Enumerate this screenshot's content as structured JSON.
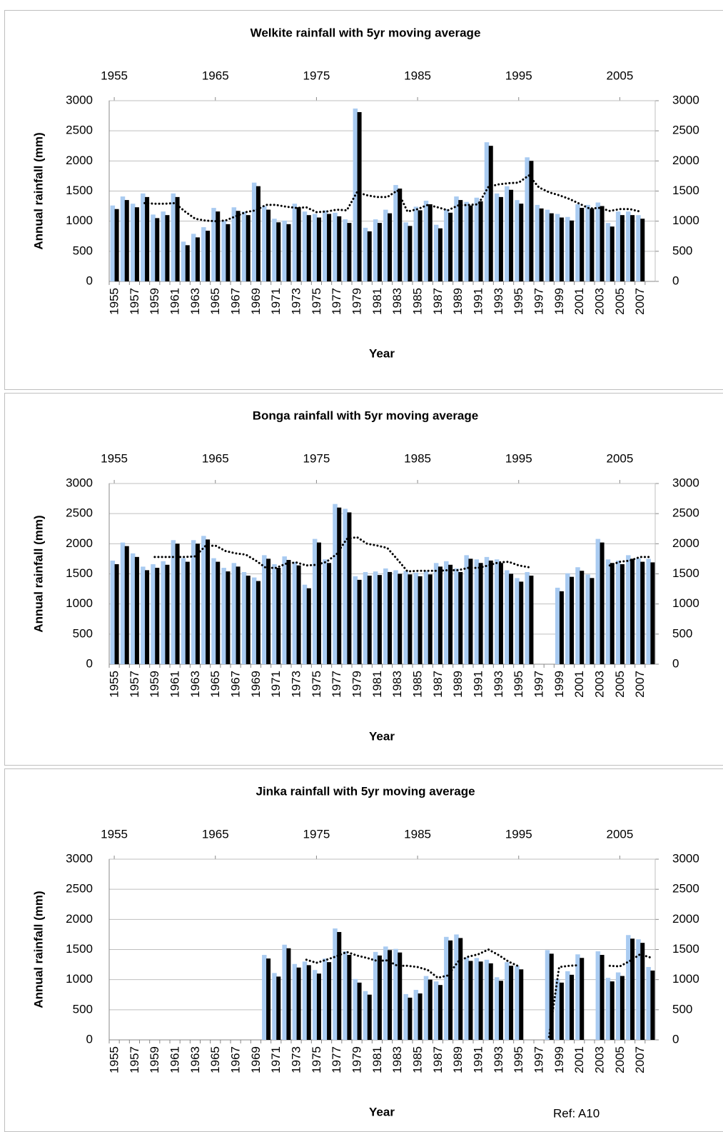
{
  "chart_data": [
    {
      "type": "bar",
      "title": "Welkite rainfall with 5yr moving average",
      "xlabel": "Year",
      "ylabel": "Annual rainfall (mm)",
      "categories": [
        "1955",
        null,
        "1957",
        null,
        "1959",
        null,
        "1961",
        null,
        "1963",
        null,
        "1965",
        null,
        "1967",
        null,
        "1969",
        null,
        "1971",
        null,
        "1973",
        null,
        "1975",
        null,
        "1977",
        null,
        "1979",
        null,
        "1981",
        null,
        "1983",
        null,
        "1985",
        null,
        "1987",
        null,
        "1989",
        null,
        "1991",
        null,
        "1993",
        null,
        "1995",
        null,
        "1997",
        null,
        "1999",
        null,
        "2001",
        null,
        "2003",
        null,
        "2005",
        null,
        "2007",
        null
      ],
      "values": [
        1260,
        1410,
        1290,
        1460,
        1110,
        1160,
        1460,
        660,
        790,
        900,
        1220,
        1010,
        1230,
        1160,
        1640,
        1250,
        1040,
        1010,
        1290,
        1160,
        1120,
        1180,
        1140,
        1030,
        2870,
        890,
        1030,
        1190,
        1600,
        980,
        1240,
        1340,
        940,
        1200,
        1410,
        1320,
        1390,
        2310,
        1460,
        1580,
        1350,
        2060,
        1270,
        1190,
        1120,
        1070,
        1280,
        1270,
        1310,
        970,
        1160,
        1160,
        1100,
        null
      ],
      "color": "#a9cbf1",
      "shadow_color": "#000000",
      "moving_average": {
        "color": "#000000",
        "values": [
          null,
          null,
          null,
          1300,
          1290,
          1290,
          1300,
          1160,
          1040,
          1010,
          1000,
          1010,
          1080,
          1150,
          1180,
          1270,
          1270,
          1240,
          1220,
          1230,
          1150,
          1160,
          1190,
          1180,
          1480,
          1430,
          1400,
          1400,
          1510,
          1160,
          1200,
          1270,
          1230,
          1180,
          1260,
          1270,
          1280,
          1570,
          1610,
          1630,
          1640,
          1760,
          1560,
          1480,
          1430,
          1370,
          1290,
          1210,
          1220,
          1170,
          1200,
          1200,
          1160,
          null
        ]
      },
      "ylim": [
        0,
        3000
      ],
      "yticks": [
        0,
        500,
        1000,
        1500,
        2000,
        2500,
        3000
      ],
      "y2lim": [
        0,
        3000
      ],
      "y2ticks": [
        0,
        500,
        1000,
        1500,
        2000,
        2500,
        3000
      ],
      "x2lim": [
        1954.5,
        2008.5
      ],
      "x2ticks": [
        1955,
        1965,
        1975,
        1985,
        1995,
        2005
      ],
      "grid": true
    },
    {
      "type": "bar",
      "title": "Bonga rainfall with 5yr moving average",
      "xlabel": "Year",
      "ylabel": "Annual rainfall (mm)",
      "categories": [
        "1955",
        null,
        "1957",
        null,
        "1959",
        null,
        "1961",
        null,
        "1963",
        null,
        "1965",
        null,
        "1967",
        null,
        "1969",
        null,
        "1971",
        null,
        "1973",
        null,
        "1975",
        null,
        "1977",
        null,
        "1979",
        null,
        "1981",
        null,
        "1983",
        null,
        "1985",
        null,
        "1987",
        null,
        "1989",
        null,
        "1991",
        null,
        "1993",
        null,
        "1995",
        null,
        "1997",
        null,
        "1999",
        null,
        "2001",
        null,
        "2003",
        null,
        "2005",
        null,
        "2007",
        null
      ],
      "values": [
        1720,
        2020,
        1840,
        1620,
        1660,
        1710,
        2060,
        1760,
        2060,
        2130,
        1760,
        1600,
        1680,
        1530,
        1440,
        1810,
        1660,
        1790,
        1700,
        1320,
        2080,
        1740,
        2660,
        2580,
        1460,
        1530,
        1540,
        1590,
        1560,
        1550,
        1520,
        1550,
        1680,
        1710,
        1590,
        1810,
        1740,
        1780,
        1740,
        1560,
        1430,
        1530,
        null,
        null,
        1270,
        1510,
        1610,
        1490,
        2080,
        1740,
        1720,
        1810,
        1760,
        1750
      ],
      "color": "#a9cbf1",
      "shadow_color": "#000000",
      "moving_average": {
        "color": "#000000",
        "values": [
          null,
          null,
          null,
          null,
          1780,
          1780,
          1780,
          1780,
          1790,
          1960,
          1970,
          1880,
          1840,
          1820,
          1720,
          1600,
          1600,
          1670,
          1690,
          1640,
          1650,
          1700,
          1830,
          2080,
          2110,
          2000,
          1970,
          1930,
          1740,
          1540,
          1550,
          1550,
          1550,
          1560,
          1560,
          1600,
          1600,
          1640,
          1690,
          1700,
          1640,
          1610,
          null,
          null,
          null,
          null,
          null,
          null,
          null,
          1640,
          1700,
          1720,
          1780,
          1780
        ]
      },
      "ylim": [
        0,
        3000
      ],
      "yticks": [
        0,
        500,
        1000,
        1500,
        2000,
        2500,
        3000
      ],
      "y2lim": [
        0,
        3000
      ],
      "y2ticks": [
        0,
        500,
        1000,
        1500,
        2000,
        2500,
        3000
      ],
      "x2lim": [
        1954.5,
        2008.5
      ],
      "x2ticks": [
        1955,
        1965,
        1975,
        1985,
        1995,
        2005
      ],
      "grid": true
    },
    {
      "type": "bar",
      "title": "Jinka rainfall with 5yr moving average",
      "xlabel": "Year",
      "ylabel": "Annual rainfall (mm)",
      "categories": [
        "1955",
        null,
        "1957",
        null,
        "1959",
        null,
        "1961",
        null,
        "1963",
        null,
        "1965",
        null,
        "1967",
        null,
        "1969",
        null,
        "1971",
        null,
        "1973",
        null,
        "1975",
        null,
        "1977",
        null,
        "1979",
        null,
        "1981",
        null,
        "1983",
        null,
        "1985",
        null,
        "1987",
        null,
        "1989",
        null,
        "1991",
        null,
        "1993",
        null,
        "1995",
        null,
        "1997",
        null,
        "1999",
        null,
        "2001",
        null,
        "2003",
        null,
        "2005",
        null,
        "2007",
        null
      ],
      "values": [
        null,
        null,
        null,
        null,
        null,
        null,
        null,
        null,
        null,
        null,
        null,
        null,
        null,
        null,
        null,
        1410,
        1110,
        1580,
        1260,
        1300,
        1160,
        1350,
        1850,
        1470,
        1010,
        810,
        1460,
        1550,
        1510,
        760,
        830,
        1060,
        970,
        1710,
        1750,
        1370,
        1360,
        1330,
        1040,
        1290,
        1230,
        null,
        null,
        1490,
        1010,
        1140,
        1420,
        null,
        1470,
        1030,
        1120,
        1740,
        1670,
        1210
      ],
      "color": "#a9cbf1",
      "shadow_color": "#000000",
      "moving_average": {
        "color": "#000000",
        "values": [
          null,
          null,
          null,
          null,
          null,
          null,
          null,
          null,
          null,
          null,
          null,
          null,
          null,
          null,
          null,
          null,
          null,
          null,
          null,
          1330,
          1280,
          1330,
          1390,
          1460,
          1400,
          1360,
          1310,
          1320,
          1230,
          1230,
          1210,
          1160,
          1030,
          1070,
          1300,
          1380,
          1420,
          1500,
          1410,
          1300,
          1220,
          null,
          null,
          50,
          1210,
          1230,
          1240,
          null,
          null,
          1230,
          1220,
          1310,
          1420,
          1370
        ]
      },
      "ylim": [
        0,
        3000
      ],
      "yticks": [
        0,
        500,
        1000,
        1500,
        2000,
        2500,
        3000
      ],
      "y2lim": [
        0,
        3000
      ],
      "y2ticks": [
        0,
        500,
        1000,
        1500,
        2000,
        2500,
        3000
      ],
      "x2lim": [
        1954.5,
        2008.5
      ],
      "x2ticks": [
        1955,
        1965,
        1975,
        1985,
        1995,
        2005
      ],
      "grid": true
    }
  ],
  "reference": "Ref: A10"
}
